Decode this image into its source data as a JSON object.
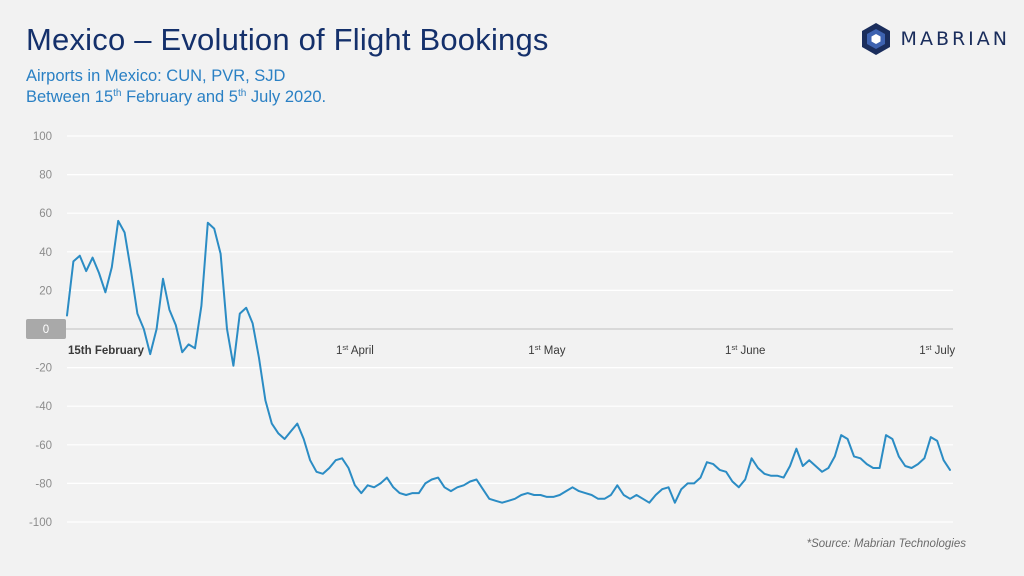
{
  "header": {
    "title": "Mexico – Evolution of Flight Bookings",
    "subtitle_line1": "Airports in Mexico: CUN, PVR, SJD",
    "subtitle_line2_pre": "Between 15",
    "subtitle_line2_sup1": "th",
    "subtitle_line2_mid": " February and 5",
    "subtitle_line2_sup2": "th",
    "subtitle_line2_post": " July 2020."
  },
  "brand": {
    "name": "MABRIAN",
    "color_dark": "#1a2d5c",
    "color_accent": "#3d62b0"
  },
  "source": "*Source: Mabrian Technologies",
  "colors": {
    "line": "#2b8cc4",
    "title": "#14306b",
    "subtitle": "#2a80c4",
    "background": "#f2f2f2"
  },
  "chart_data": {
    "type": "line",
    "title": "",
    "xlabel": "",
    "ylabel": "",
    "ylim": [
      -100,
      100
    ],
    "yticks": [
      100,
      80,
      60,
      40,
      20,
      0,
      -20,
      -40,
      -60,
      -80,
      -100
    ],
    "grid": true,
    "xticks": [
      {
        "day": 0,
        "label": "15th February",
        "sup": ""
      },
      {
        "day": 45,
        "label": "1",
        "sup": "st",
        "suffix": " April"
      },
      {
        "day": 75,
        "label": "1",
        "sup": "st",
        "suffix": " May"
      },
      {
        "day": 106,
        "label": "1",
        "sup": "st",
        "suffix": " June"
      },
      {
        "day": 136,
        "label": "1",
        "sup": "st",
        "suffix": " July"
      }
    ],
    "series": [
      {
        "values": [
          7,
          35,
          38,
          30,
          37,
          29,
          19,
          32,
          56,
          50,
          30,
          8,
          0,
          -13,
          0,
          26,
          10,
          2,
          -12,
          -8,
          -10,
          12,
          55,
          52,
          39,
          0,
          -19,
          8,
          11,
          3,
          -15,
          -37,
          -49,
          -54,
          -57,
          -53,
          -49,
          -57,
          -68,
          -74,
          -75,
          -72,
          -68,
          -67,
          -72,
          -81,
          -85,
          -81,
          -82,
          -80,
          -77,
          -82,
          -85,
          -86,
          -85,
          -85,
          -80,
          -78,
          -77,
          -82,
          -84,
          -82,
          -81,
          -79,
          -78,
          -83,
          -88,
          -89,
          -90,
          -89,
          -88,
          -86,
          -85,
          -86,
          -86,
          -87,
          -87,
          -86,
          -84,
          -82,
          -84,
          -85,
          -86,
          -88,
          -88,
          -86,
          -81,
          -86,
          -88,
          -86,
          -88,
          -90,
          -86,
          -83,
          -82,
          -90,
          -83,
          -80,
          -80,
          -77,
          -69,
          -70,
          -73,
          -74,
          -79,
          -82,
          -78,
          -67,
          -72,
          -75,
          -76,
          -76,
          -77,
          -71,
          -62,
          -71,
          -68,
          -71,
          -74,
          -72,
          -66,
          -55,
          -57,
          -66,
          -67,
          -70,
          -72,
          -72,
          -55,
          -57,
          -66,
          -71,
          -72,
          -70,
          -67,
          -56,
          -58,
          -68,
          -73
        ]
      }
    ]
  }
}
